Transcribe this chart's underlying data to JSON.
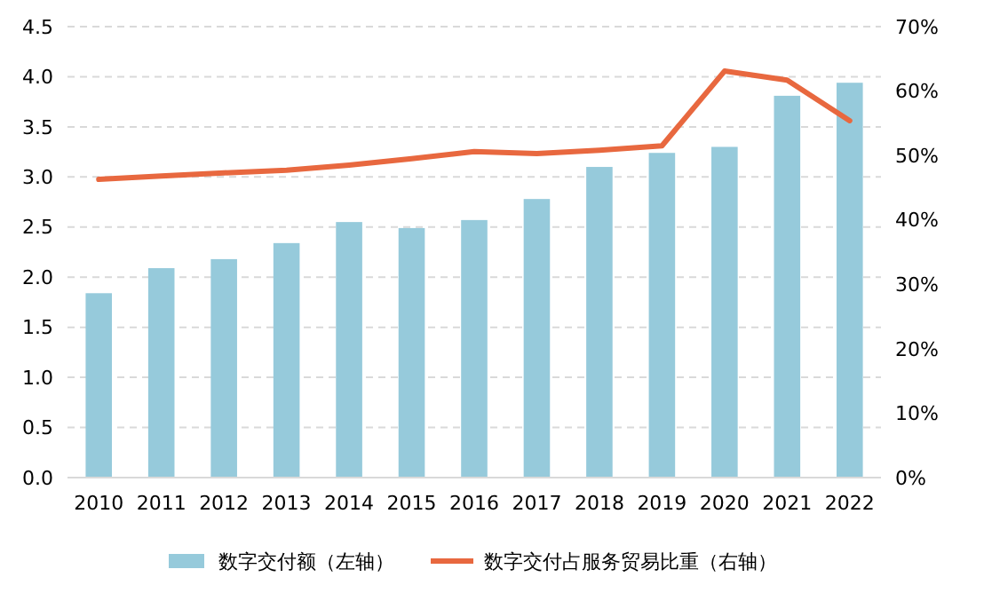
{
  "chart_data": {
    "type": "bar",
    "categories": [
      "2010",
      "2011",
      "2012",
      "2013",
      "2014",
      "2015",
      "2016",
      "2017",
      "2018",
      "2019",
      "2020",
      "2021",
      "2022"
    ],
    "series": [
      {
        "name": "数字交付额（左轴）",
        "color": "#96cadb",
        "values": [
          1.84,
          2.09,
          2.18,
          2.34,
          2.55,
          2.49,
          2.57,
          2.78,
          3.1,
          3.24,
          3.3,
          3.81,
          3.94
        ]
      },
      {
        "name": "数字交付占服务贸易比重（右轴）",
        "type": "line",
        "axis": "y2",
        "color": "#e8683f",
        "values": [
          46.3,
          46.8,
          47.3,
          47.7,
          48.5,
          49.5,
          50.6,
          50.3,
          50.8,
          51.5,
          63.1,
          61.7,
          55.4
        ]
      }
    ],
    "ylim": [
      0,
      4.5
    ],
    "yticks": [
      {
        "value": 0,
        "label": "0.0"
      },
      {
        "value": 0.5,
        "label": "0.5"
      },
      {
        "value": 1,
        "label": "1.0"
      },
      {
        "value": 1.5,
        "label": "1.5"
      },
      {
        "value": 2,
        "label": "2.0"
      },
      {
        "value": 2.5,
        "label": "2.5"
      },
      {
        "value": 3,
        "label": "3.0"
      },
      {
        "value": 3.5,
        "label": "3.5"
      },
      {
        "value": 4,
        "label": "4.0"
      },
      {
        "value": 4.5,
        "label": "4.5"
      }
    ],
    "y2lim": [
      0,
      70
    ],
    "y2ticks": [
      {
        "value": 0,
        "label": "0%"
      },
      {
        "value": 10,
        "label": "10%"
      },
      {
        "value": 20,
        "label": "20%"
      },
      {
        "value": 30,
        "label": "30%"
      },
      {
        "value": 40,
        "label": "40%"
      },
      {
        "value": 50,
        "label": "50%"
      },
      {
        "value": 60,
        "label": "60%"
      },
      {
        "value": 70,
        "label": "70%"
      }
    ],
    "grid": "y",
    "legend": "bottom",
    "marker": "none",
    "line_style": "solid"
  }
}
